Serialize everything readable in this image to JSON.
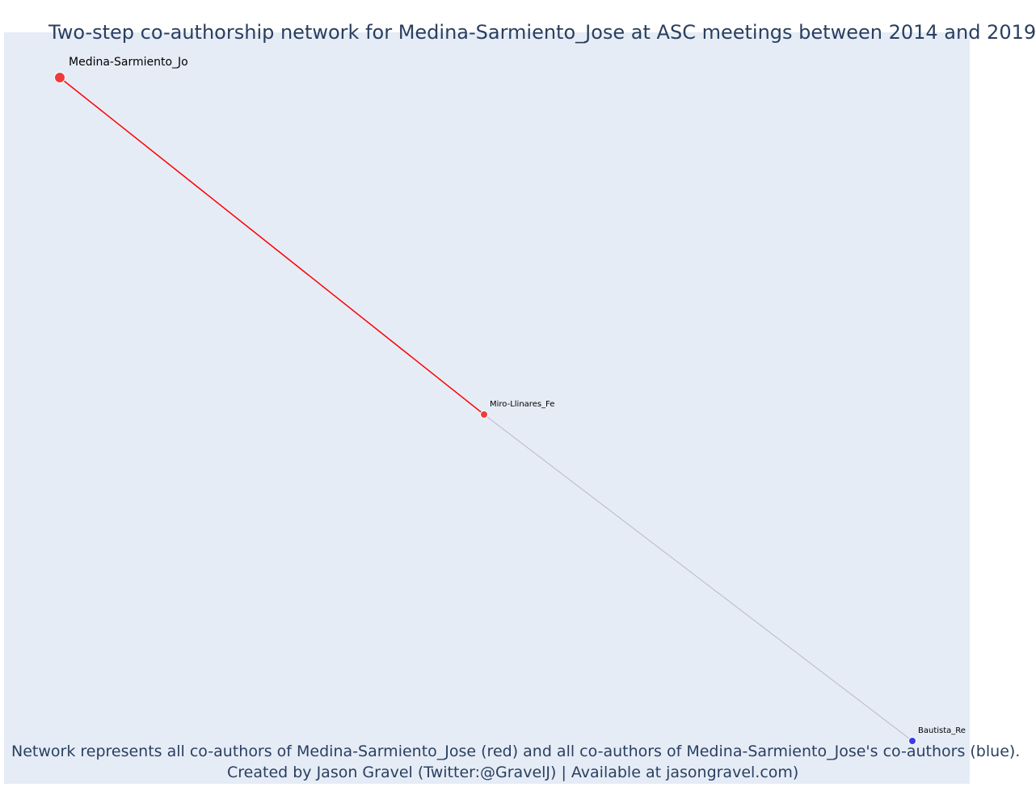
{
  "title": "Two-step co-authorship network for Medina-Sarmiento_Jose at ASC meetings between 2014 and 2019",
  "caption": {
    "line1": "Network represents all co-authors of Medina-Sarmiento_Jose (red) and all co-authors of Medina-Sarmiento_Jose's co-authors (blue).",
    "line2": "Created by Jason Gravel (Twitter:@GravelJ) | Available at jasongravel.com)"
  },
  "colors": {
    "background": "#e5ecf6",
    "focal_node": "#ef3b3b",
    "coauthor_node": "#ef3b3b",
    "second_step_node": "#3b3bef",
    "first_step_edge": "#ff0000",
    "second_step_edge": "#b8b8c8",
    "text": "#2a3f5f"
  },
  "network": {
    "nodes": [
      {
        "id": "Medina-Sarmiento_Jo",
        "label": "Medina-Sarmiento_Jo",
        "group": "focal"
      },
      {
        "id": "Miro-Llinares_Fe",
        "label": "Miro-Llinares_Fe",
        "group": "coauthor"
      },
      {
        "id": "Bautista_Re",
        "label": "Bautista_Re",
        "group": "second_step"
      }
    ],
    "edges": [
      {
        "source": "Medina-Sarmiento_Jo",
        "target": "Miro-Llinares_Fe",
        "type": "first_step"
      },
      {
        "source": "Miro-Llinares_Fe",
        "target": "Bautista_Re",
        "type": "second_step"
      }
    ]
  }
}
